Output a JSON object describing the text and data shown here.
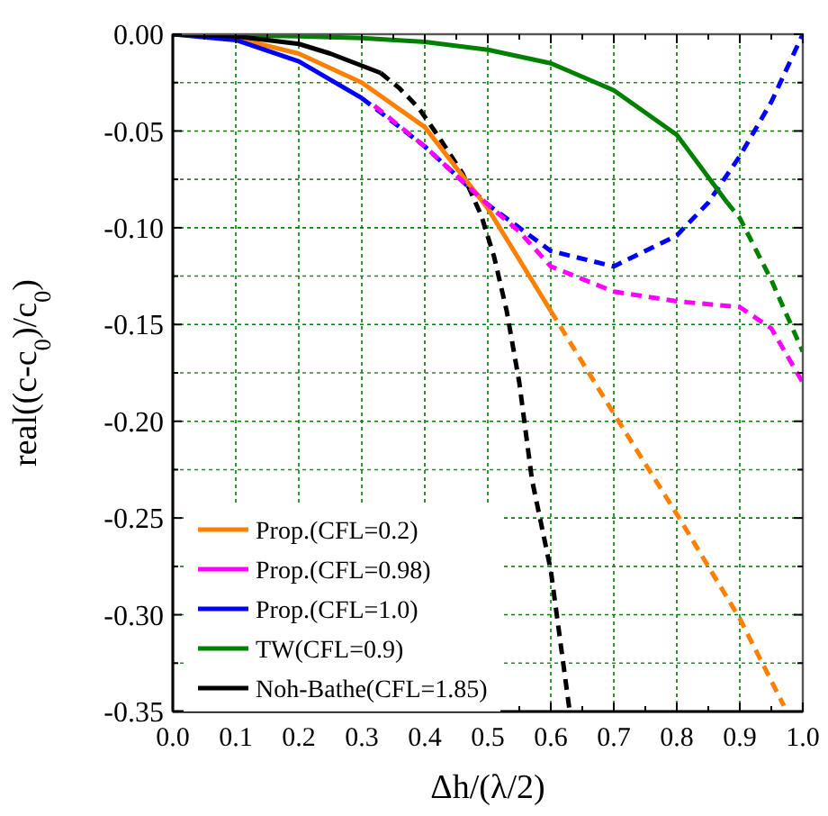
{
  "chart_data": {
    "type": "line",
    "xlabel": "Δh/(λ/2)",
    "ylabel": "real((c-c$_{0}$)/c$_{0}$)",
    "xlim": [
      0,
      1
    ],
    "ylim": [
      -0.35,
      0
    ],
    "xticks": [
      {
        "value": 0,
        "label": "0.0"
      },
      {
        "value": 0.05,
        "label": null
      },
      {
        "value": 0.1,
        "label": "0.1"
      },
      {
        "value": 0.15,
        "label": null
      },
      {
        "value": 0.2,
        "label": "0.2"
      },
      {
        "value": 0.25,
        "label": null
      },
      {
        "value": 0.3,
        "label": "0.3"
      },
      {
        "value": 0.35,
        "label": null
      },
      {
        "value": 0.4,
        "label": "0.4"
      },
      {
        "value": 0.45,
        "label": null
      },
      {
        "value": 0.5,
        "label": "0.5"
      },
      {
        "value": 0.55,
        "label": null
      },
      {
        "value": 0.6,
        "label": "0.6"
      },
      {
        "value": 0.65,
        "label": null
      },
      {
        "value": 0.7,
        "label": "0.7"
      },
      {
        "value": 0.75,
        "label": null
      },
      {
        "value": 0.8,
        "label": "0.8"
      },
      {
        "value": 0.85,
        "label": null
      },
      {
        "value": 0.9,
        "label": "0.9"
      },
      {
        "value": 0.95,
        "label": null
      },
      {
        "value": 1,
        "label": "1.0"
      }
    ],
    "yticks": [
      {
        "value": -0.35,
        "label": "-0.35"
      },
      {
        "value": -0.325,
        "label": null
      },
      {
        "value": -0.3,
        "label": "-0.30"
      },
      {
        "value": -0.275,
        "label": null
      },
      {
        "value": -0.25,
        "label": "-0.25"
      },
      {
        "value": -0.225,
        "label": null
      },
      {
        "value": -0.2,
        "label": "-0.20"
      },
      {
        "value": -0.175,
        "label": null
      },
      {
        "value": -0.15,
        "label": "-0.15"
      },
      {
        "value": -0.125,
        "label": null
      },
      {
        "value": -0.1,
        "label": "-0.10"
      },
      {
        "value": -0.075,
        "label": null
      },
      {
        "value": -0.05,
        "label": "-0.05"
      },
      {
        "value": -0.025,
        "label": null
      },
      {
        "value": 0,
        "label": "0.00"
      }
    ],
    "grid": true,
    "legend": "bottom left",
    "marker": "none",
    "series": [
      {
        "color": "#ff8000",
        "line_style": "dashed",
        "x": [
          0.6,
          0.7,
          0.8,
          0.9,
          0.97
        ],
        "values": [
          -0.143,
          -0.196,
          -0.248,
          -0.302,
          -0.347
        ]
      },
      {
        "color": "#0000ff",
        "line_style": "dashed",
        "x": [
          0.3,
          0.4,
          0.5,
          0.55,
          0.6,
          0.7,
          0.8,
          0.85,
          0.9,
          0.95,
          1.0
        ],
        "values": [
          -0.033,
          -0.058,
          -0.088,
          -0.1,
          -0.112,
          -0.12,
          -0.104,
          -0.087,
          -0.063,
          -0.035,
          0
        ]
      },
      {
        "color": "#008000",
        "line_style": "dashed",
        "x": [
          0.88,
          0.9,
          0.95,
          1.0
        ],
        "values": [
          -0.087,
          -0.095,
          -0.127,
          -0.164
        ]
      },
      {
        "color": "#000000",
        "line_style": "dashed",
        "x": [
          0.33,
          0.36,
          0.39,
          0.42,
          0.46,
          0.49,
          0.51,
          0.53,
          0.55,
          0.57,
          0.6,
          0.63
        ],
        "values": [
          -0.02,
          -0.028,
          -0.038,
          -0.052,
          -0.072,
          -0.094,
          -0.115,
          -0.143,
          -0.18,
          -0.23,
          -0.277,
          -0.35
        ]
      },
      {
        "name": "Prop.(CFL=0.2)",
        "color": "#ff8000",
        "line_style": "solid",
        "x": [
          0,
          0.1,
          0.2,
          0.3,
          0.4,
          0.5,
          0.6
        ],
        "values": [
          0,
          -0.002,
          -0.01,
          -0.025,
          -0.048,
          -0.09,
          -0.143
        ]
      },
      {
        "name": "Prop.(CFL=0.98)",
        "color": "#ff00ff",
        "line_style": "dashed",
        "x": [
          0.32,
          0.4,
          0.5,
          0.55,
          0.6,
          0.7,
          0.8,
          0.9,
          0.95,
          1.0
        ],
        "values": [
          -0.037,
          -0.058,
          -0.088,
          -0.102,
          -0.12,
          -0.133,
          -0.138,
          -0.141,
          -0.152,
          -0.18
        ]
      },
      {
        "name": "Prop.(CFL=1.0)",
        "color": "#0000ff",
        "line_style": "solid",
        "x": [
          0,
          0.1,
          0.2,
          0.3
        ],
        "values": [
          0,
          -0.003,
          -0.014,
          -0.033
        ]
      },
      {
        "name": "TW(CFL=0.9)",
        "color": "#008000",
        "line_style": "solid",
        "x": [
          0,
          0.2,
          0.3,
          0.4,
          0.5,
          0.6,
          0.7,
          0.8,
          0.88
        ],
        "values": [
          0,
          -0.001,
          -0.002,
          -0.004,
          -0.008,
          -0.015,
          -0.029,
          -0.052,
          -0.087
        ]
      },
      {
        "name": "Noh-Bathe(CFL=1.85)",
        "color": "#000000",
        "line_style": "solid",
        "x": [
          0,
          0.1,
          0.2,
          0.25,
          0.33
        ],
        "values": [
          0,
          -0.001,
          -0.005,
          -0.01,
          -0.02
        ]
      }
    ]
  }
}
